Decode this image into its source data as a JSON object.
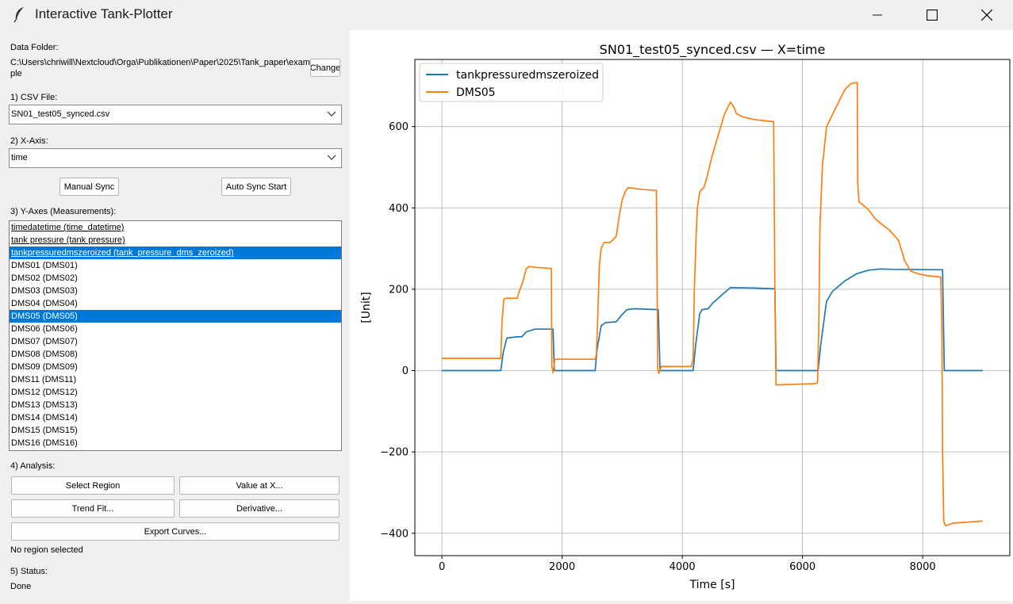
{
  "window": {
    "title": "Interactive Tank-Plotter",
    "icon": "feather-icon"
  },
  "data_folder": {
    "label": "Data Folder:",
    "path": "C:\\Users\\chriwill\\Nextcloud\\Orga\\Publikationen\\Paper\\2025\\Tank_paper\\example",
    "change_button": "Change"
  },
  "csv": {
    "label": "1) CSV File:",
    "value": "SN01_test05_synced.csv"
  },
  "xaxis": {
    "label": "2) X-Axis:",
    "value": "time"
  },
  "sync": {
    "manual": "Manual Sync",
    "auto": "Auto Sync Start"
  },
  "yaxes": {
    "label": "3) Y-Axes (Measurements):",
    "items": [
      {
        "text": "timedatetime (time_datetime)",
        "selected": false,
        "underline": true
      },
      {
        "text": "tank pressure (tank pressure)",
        "selected": false,
        "underline": true
      },
      {
        "text": "tankpressuredmszeroized (tank_pressure_dms_zeroized)",
        "selected": true,
        "underline": true
      },
      {
        "text": "DMS01 (DMS01)",
        "selected": false
      },
      {
        "text": "DMS02 (DMS02)",
        "selected": false
      },
      {
        "text": "DMS03 (DMS03)",
        "selected": false
      },
      {
        "text": "DMS04 (DMS04)",
        "selected": false
      },
      {
        "text": "DMS05 (DMS05)",
        "selected": true
      },
      {
        "text": "DMS06 (DMS06)",
        "selected": false
      },
      {
        "text": "DMS07 (DMS07)",
        "selected": false
      },
      {
        "text": "DMS08 (DMS08)",
        "selected": false
      },
      {
        "text": "DMS09 (DMS09)",
        "selected": false
      },
      {
        "text": "DMS11 (DMS11)",
        "selected": false
      },
      {
        "text": "DMS12 (DMS12)",
        "selected": false
      },
      {
        "text": "DMS13 (DMS13)",
        "selected": false
      },
      {
        "text": "DMS14 (DMS14)",
        "selected": false
      },
      {
        "text": "DMS15 (DMS15)",
        "selected": false
      },
      {
        "text": "DMS16 (DMS16)",
        "selected": false
      }
    ]
  },
  "analysis": {
    "label": "4) Analysis:",
    "select_region": "Select Region",
    "value_at_x": "Value at X...",
    "trend_fit": "Trend Fit...",
    "derivative": "Derivative...",
    "export": "Export Curves...",
    "region_status": "No region selected"
  },
  "status": {
    "label": "5) Status:",
    "value": "Done"
  },
  "colors": {
    "selection": "#0078d7",
    "series1": "#1f77b4",
    "series2": "#ff7f0e"
  },
  "chart_data": {
    "type": "line",
    "title": "SN01_test05_synced.csv — X=time",
    "xlabel": "Time [s]",
    "ylabel": "[Unit]",
    "xlim": [
      -450,
      9450
    ],
    "ylim": [
      -455,
      765
    ],
    "xticks": [
      0,
      2000,
      4000,
      6000,
      8000
    ],
    "yticks": [
      -400,
      -200,
      0,
      200,
      400,
      600
    ],
    "grid": true,
    "legend": "top-left",
    "series": [
      {
        "name": "tankpressuredmszeroized",
        "color": "#1f77b4",
        "x": [
          0,
          980,
          1020,
          1080,
          1250,
          1330,
          1400,
          1550,
          1850,
          1870,
          2550,
          2580,
          2650,
          2720,
          2900,
          3000,
          3080,
          3200,
          3600,
          3630,
          4180,
          4220,
          4290,
          4330,
          4430,
          4500,
          4650,
          4800,
          5200,
          5540,
          5560,
          6260,
          6300,
          6400,
          6500,
          6700,
          6900,
          7100,
          7300,
          7500,
          8300,
          8330,
          8360,
          9000
        ],
        "y": [
          0,
          0,
          45,
          80,
          83,
          83,
          95,
          102,
          102,
          0,
          0,
          50,
          110,
          118,
          120,
          138,
          150,
          152,
          150,
          0,
          0,
          60,
          140,
          150,
          152,
          165,
          185,
          204,
          203,
          201,
          0,
          0,
          60,
          170,
          195,
          220,
          238,
          247,
          250,
          249,
          248,
          248,
          0,
          0
        ]
      },
      {
        "name": "DMS05",
        "color": "#ff7f0e",
        "x": [
          0,
          980,
          1000,
          1030,
          1060,
          1250,
          1300,
          1350,
          1400,
          1450,
          1550,
          1820,
          1830,
          1850,
          1880,
          2550,
          2570,
          2590,
          2620,
          2650,
          2700,
          2800,
          2900,
          2950,
          3000,
          3050,
          3100,
          3200,
          3350,
          3570,
          3590,
          3610,
          3650,
          4150,
          4180,
          4200,
          4230,
          4250,
          4290,
          4360,
          4400,
          4500,
          4600,
          4700,
          4800,
          4850,
          4900,
          5000,
          5200,
          5520,
          5540,
          5560,
          5600,
          6200,
          6250,
          6270,
          6290,
          6330,
          6400,
          6500,
          6600,
          6700,
          6800,
          6880,
          6910,
          6920,
          6940,
          7000,
          7100,
          7200,
          7300,
          7450,
          7600,
          7700,
          7780,
          7800,
          7850,
          7950,
          8100,
          8300,
          8320,
          8330,
          8350,
          8380,
          8500,
          9000
        ],
        "y": [
          30,
          30,
          120,
          175,
          178,
          178,
          200,
          220,
          250,
          256,
          254,
          251,
          10,
          -5,
          28,
          28,
          40,
          120,
          260,
          300,
          315,
          315,
          330,
          380,
          420,
          440,
          450,
          448,
          445,
          443,
          5,
          -7,
          10,
          10,
          30,
          200,
          330,
          400,
          440,
          450,
          470,
          530,
          580,
          630,
          660,
          650,
          632,
          624,
          617,
          612,
          200,
          -35,
          -35,
          -32,
          -30,
          100,
          350,
          500,
          600,
          630,
          660,
          690,
          705,
          708,
          708,
          460,
          415,
          408,
          395,
          375,
          362,
          345,
          320,
          270,
          250,
          245,
          242,
          237,
          233,
          230,
          100,
          -200,
          -370,
          -382,
          -375,
          -370
        ]
      }
    ]
  }
}
